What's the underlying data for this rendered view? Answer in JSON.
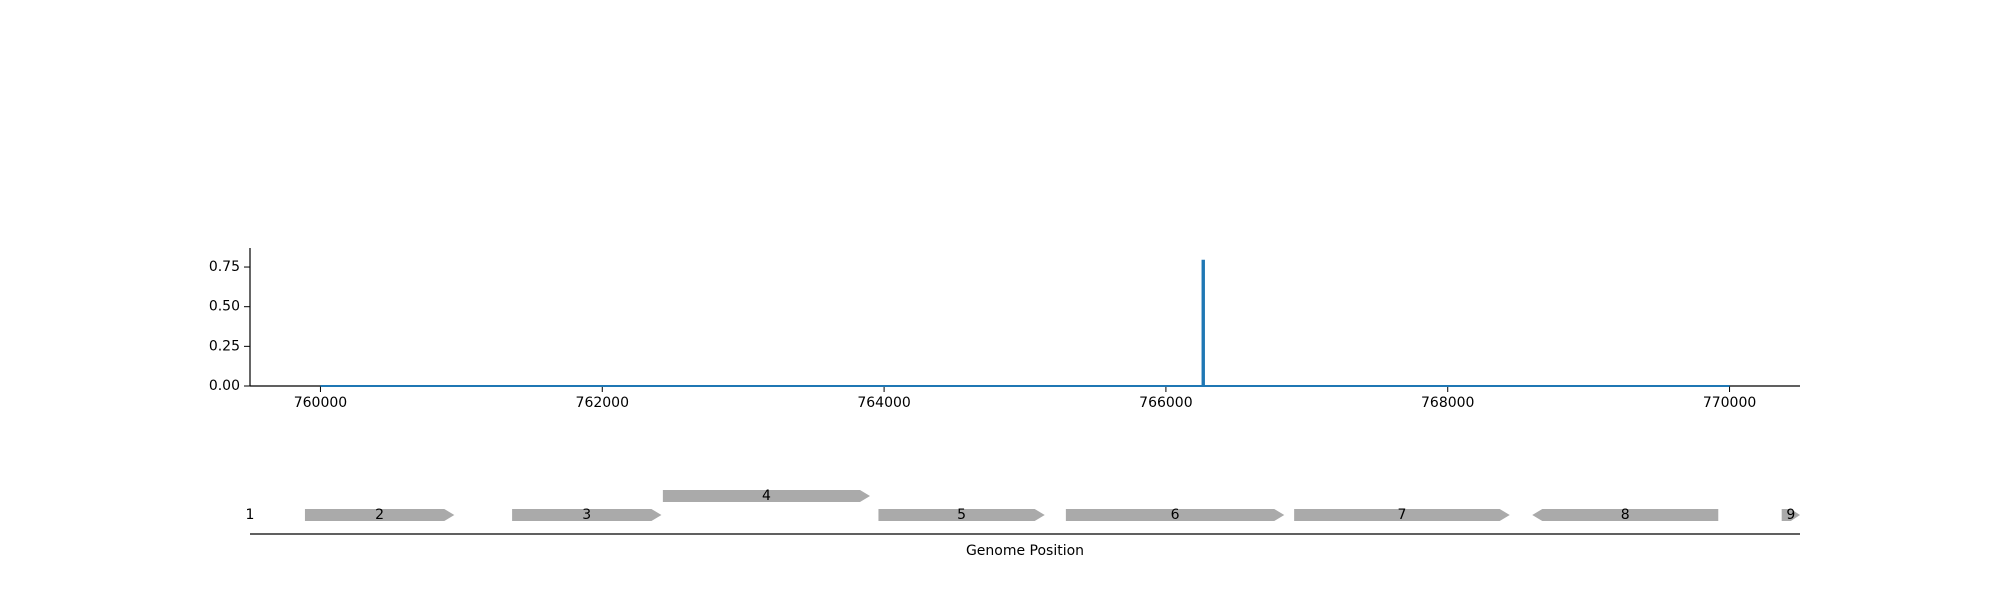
{
  "chart_data": [
    {
      "type": "line",
      "title": "",
      "xlabel": "",
      "ylabel": "",
      "xlim": [
        759500,
        770500
      ],
      "ylim": [
        0,
        0.87
      ],
      "x_ticks": [
        760000,
        762000,
        764000,
        766000,
        768000,
        770000
      ],
      "x_tick_labels": [
        "760000",
        "762000",
        "764000",
        "766000",
        "768000",
        "770000"
      ],
      "y_ticks": [
        0.0,
        0.25,
        0.5,
        0.75
      ],
      "y_tick_labels": [
        "0.00",
        "0.25",
        "0.50",
        "0.75"
      ],
      "grid": false,
      "series": [
        {
          "color": "#1f77b4",
          "x": [
            760000,
            766260,
            766260,
            766270,
            766270,
            770000
          ],
          "y": [
            0,
            0,
            0.79,
            0.79,
            0,
            0
          ]
        }
      ]
    },
    {
      "type": "gene-track",
      "xlabel": "Genome Position",
      "xlim": [
        759500,
        770500
      ],
      "feature_color": "#aaaaaa",
      "features": [
        {
          "label": "1",
          "start": 759500,
          "end": 759500,
          "strand": 1,
          "row": 0
        },
        {
          "label": "2",
          "start": 759890,
          "end": 760950,
          "strand": 1,
          "row": 0
        },
        {
          "label": "3",
          "start": 761360,
          "end": 762420,
          "strand": 1,
          "row": 0
        },
        {
          "label": "4",
          "start": 762430,
          "end": 763900,
          "strand": 1,
          "row": 1
        },
        {
          "label": "5",
          "start": 763960,
          "end": 765140,
          "strand": 1,
          "row": 0
        },
        {
          "label": "6",
          "start": 765290,
          "end": 766840,
          "strand": 1,
          "row": 0
        },
        {
          "label": "7",
          "start": 766910,
          "end": 768440,
          "strand": 1,
          "row": 0
        },
        {
          "label": "8",
          "start": 768600,
          "end": 769920,
          "strand": -1,
          "row": 0
        },
        {
          "label": "9",
          "start": 770370,
          "end": 770500,
          "strand": 1,
          "row": 0
        }
      ]
    }
  ]
}
